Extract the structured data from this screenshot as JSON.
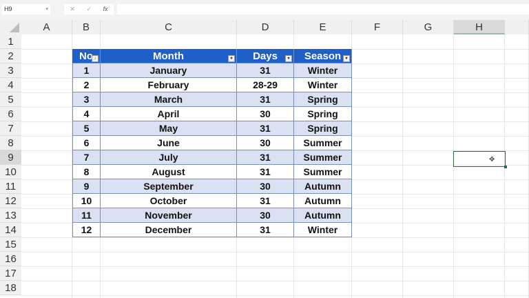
{
  "formula_bar": {
    "name_box": "H9",
    "cancel": "✕",
    "enter": "✓",
    "fx": "fx",
    "value": ""
  },
  "columns": [
    "A",
    "B",
    "C",
    "D",
    "E",
    "F",
    "G",
    "H"
  ],
  "rows": [
    "1",
    "2",
    "3",
    "4",
    "5",
    "6",
    "7",
    "8",
    "9",
    "10",
    "11",
    "12",
    "13",
    "14",
    "15",
    "16",
    "17",
    "18"
  ],
  "selected_cell": "H9",
  "table": {
    "headers": [
      "No",
      "Month",
      "Days",
      "Season"
    ],
    "rows": [
      [
        "1",
        "January",
        "31",
        "Winter"
      ],
      [
        "2",
        "February",
        "28-29",
        "Winter"
      ],
      [
        "3",
        "March",
        "31",
        "Spring"
      ],
      [
        "4",
        "April",
        "30",
        "Spring"
      ],
      [
        "5",
        "May",
        "31",
        "Spring"
      ],
      [
        "6",
        "June",
        "30",
        "Summer"
      ],
      [
        "7",
        "July",
        "31",
        "Summer"
      ],
      [
        "8",
        "August",
        "31",
        "Summer"
      ],
      [
        "9",
        "September",
        "30",
        "Autumn"
      ],
      [
        "10",
        "October",
        "31",
        "Autumn"
      ],
      [
        "11",
        "November",
        "30",
        "Autumn"
      ],
      [
        "12",
        "December",
        "31",
        "Winter"
      ]
    ],
    "header_color": "#1f5fc8",
    "band_color": "#d9e1f2"
  }
}
